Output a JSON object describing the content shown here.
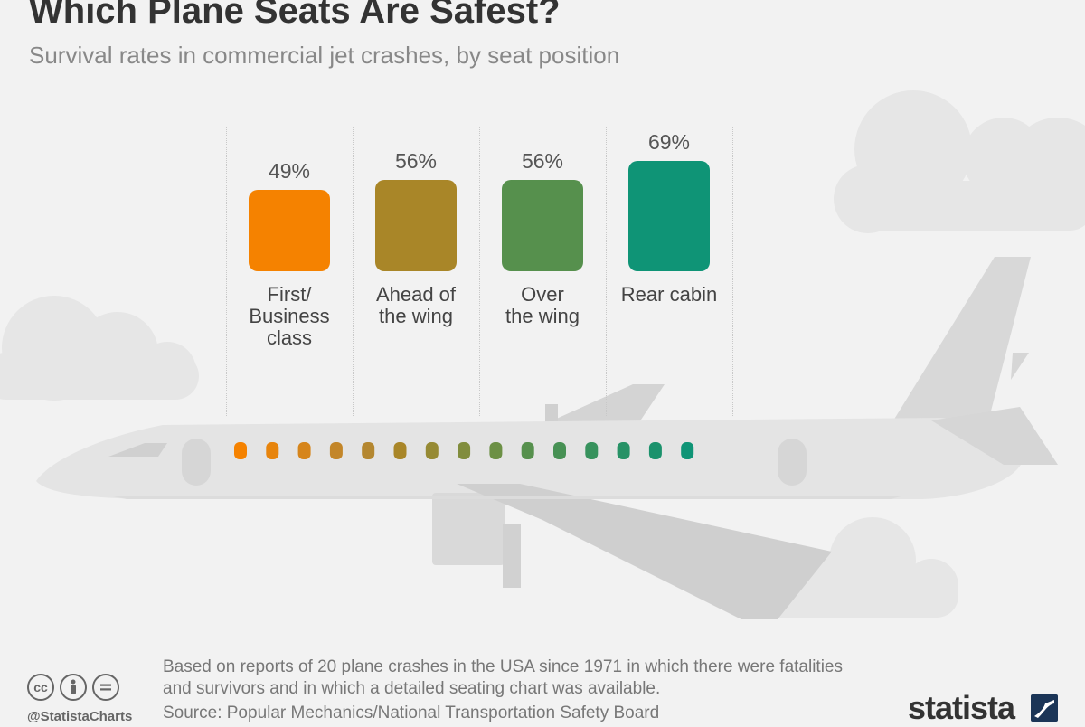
{
  "header": {
    "title": "Which Plane Seats Are Safest?",
    "subtitle": "Survival rates in commercial jet crashes, by seat position"
  },
  "chart_data": {
    "type": "bar",
    "categories": [
      "First/ Business class",
      "Ahead of the wing",
      "Over the wing",
      "Rear cabin"
    ],
    "category_lines": [
      [
        "First/",
        "Business",
        "class"
      ],
      [
        "Ahead of",
        "the wing"
      ],
      [
        "Over",
        "the wing"
      ],
      [
        "Rear cabin"
      ]
    ],
    "values": [
      49,
      56,
      56,
      69
    ],
    "value_labels": [
      "49%",
      "56%",
      "56%",
      "69%"
    ],
    "colors": [
      "#f58200",
      "#a98628",
      "#56904d",
      "#0f9476"
    ],
    "window_colors": [
      "#f58200",
      "#e7840c",
      "#d6851b",
      "#c38629",
      "#b48730",
      "#a98628",
      "#968a34",
      "#818d3d",
      "#6c9045",
      "#56904d",
      "#479154",
      "#37925d",
      "#279266",
      "#1b926c",
      "#0f9476"
    ]
  },
  "footer": {
    "note": "Based on reports of 20 plane crashes in the USA since 1971 in which there were fatalities and survivors and in which a detailed seating chart was available.",
    "source": "Source: Popular Mechanics/National Transportation Safety Board",
    "handle": "@StatistaCharts",
    "brand": "statista",
    "license_icons": [
      "cc-icon",
      "attribution-icon",
      "no-derivatives-icon"
    ]
  }
}
